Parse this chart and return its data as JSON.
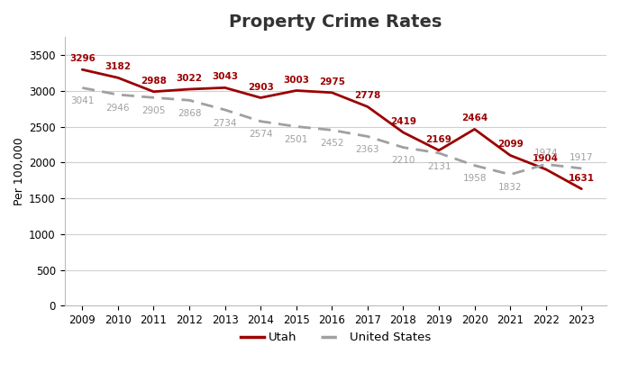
{
  "title": "Property Crime Rates",
  "ylabel": "Per 100,000",
  "years": [
    2009,
    2010,
    2011,
    2012,
    2013,
    2014,
    2015,
    2016,
    2017,
    2018,
    2019,
    2020,
    2021,
    2022,
    2023
  ],
  "utah": [
    3296,
    3182,
    2988,
    3022,
    3043,
    2903,
    3003,
    2975,
    2778,
    2419,
    2169,
    2464,
    2099,
    1904,
    1631
  ],
  "us": [
    3041,
    2946,
    2905,
    2868,
    2734,
    2574,
    2501,
    2452,
    2363,
    2210,
    2131,
    1958,
    1832,
    1974,
    1917
  ],
  "utah_color": "#9B0000",
  "us_color": "#A0A0A0",
  "background_color": "#ffffff",
  "ylim": [
    0,
    3750
  ],
  "yticks": [
    0,
    500,
    1000,
    1500,
    2000,
    2500,
    3000,
    3500
  ],
  "title_fontsize": 14,
  "label_fontsize": 7.5,
  "axis_label_fontsize": 9,
  "legend_labels": [
    "Utah",
    "United States"
  ],
  "grid_color": "#d0d0d0",
  "utah_label_offsets_x": [
    0,
    0,
    0,
    0,
    0,
    0,
    0,
    0,
    0,
    0,
    0,
    0,
    0,
    0,
    0
  ],
  "utah_label_offsets_y": [
    5,
    5,
    5,
    5,
    5,
    5,
    5,
    5,
    5,
    5,
    5,
    5,
    5,
    5,
    5
  ],
  "us_label_offsets_y": [
    -7,
    -7,
    -7,
    -7,
    -7,
    -7,
    -7,
    -7,
    -7,
    -7,
    -7,
    -7,
    -7,
    5,
    5
  ]
}
